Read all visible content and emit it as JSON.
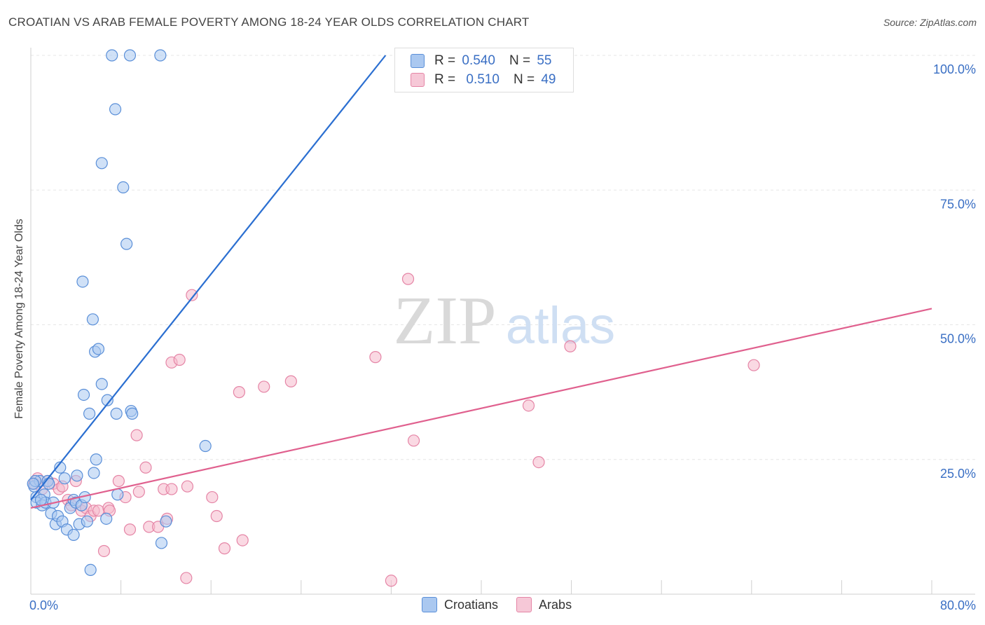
{
  "title": "CROATIAN VS ARAB FEMALE POVERTY AMONG 18-24 YEAR OLDS CORRELATION CHART",
  "source": "Source: ZipAtlas.com",
  "watermark": {
    "zip": "ZIP",
    "atlas": "atlas"
  },
  "colors": {
    "croatians_fill": "#aac8f0",
    "croatians_stroke": "#5a8fd8",
    "croatians_line": "#2b6fd1",
    "arabs_fill": "#f6b9cc",
    "arabs_stroke": "#e585a6",
    "arabs_line": "#e0608e",
    "axis_text": "#3a6fc4",
    "grid": "#e6e6e6"
  },
  "legend_top": {
    "rows": [
      {
        "r_label": "R =",
        "r_value": "0.540",
        "n_label": "N =",
        "n_value": "55"
      },
      {
        "r_label": "R =",
        "r_value": "0.510",
        "n_label": "N =",
        "n_value": "49"
      }
    ]
  },
  "legend_bottom": [
    "Croatians",
    "Arabs"
  ],
  "chart_data": {
    "type": "scatter",
    "title": "CROATIAN VS ARAB FEMALE POVERTY AMONG 18-24 YEAR OLDS CORRELATION CHART",
    "xlabel": "",
    "ylabel": "Female Poverty Among 18-24 Year Olds",
    "xlim": [
      0,
      80
    ],
    "ylim": [
      0,
      100
    ],
    "x_tick_labels": [
      "0.0%",
      "80.0%"
    ],
    "y_tick_labels": [
      "100.0%",
      "75.0%",
      "50.0%",
      "25.0%"
    ],
    "y_ticks": [
      100,
      75,
      50,
      25
    ],
    "grid": true,
    "legend_position": "top-center",
    "series": [
      {
        "name": "Croatians",
        "r": 0.54,
        "n": 55,
        "trend": {
          "x": [
            0,
            31.5
          ],
          "y": [
            17.5,
            100
          ]
        },
        "points": [
          [
            0.3,
            20
          ],
          [
            0.5,
            18
          ],
          [
            0.5,
            17
          ],
          [
            0.8,
            21
          ],
          [
            1.0,
            16.5
          ],
          [
            1.2,
            18.5
          ],
          [
            1.3,
            17
          ],
          [
            1.5,
            21
          ],
          [
            1.8,
            15
          ],
          [
            2.0,
            17
          ],
          [
            2.2,
            13
          ],
          [
            2.4,
            14.5
          ],
          [
            2.6,
            23.5
          ],
          [
            2.8,
            13.5
          ],
          [
            3.0,
            21.5
          ],
          [
            3.2,
            12
          ],
          [
            3.5,
            16
          ],
          [
            3.8,
            17.5
          ],
          [
            3.8,
            11
          ],
          [
            4.0,
            17
          ],
          [
            4.1,
            22
          ],
          [
            4.3,
            13
          ],
          [
            4.5,
            16.5
          ],
          [
            4.6,
            58
          ],
          [
            4.7,
            37
          ],
          [
            4.8,
            18
          ],
          [
            5.0,
            13.5
          ],
          [
            5.2,
            33.5
          ],
          [
            5.5,
            51
          ],
          [
            5.6,
            22.5
          ],
          [
            5.7,
            45
          ],
          [
            5.8,
            25
          ],
          [
            6.0,
            45.5
          ],
          [
            6.3,
            39
          ],
          [
            6.3,
            80
          ],
          [
            6.7,
            14
          ],
          [
            6.8,
            36
          ],
          [
            7.2,
            100
          ],
          [
            7.5,
            90
          ],
          [
            7.6,
            33.5
          ],
          [
            7.7,
            18.5
          ],
          [
            8.2,
            75.5
          ],
          [
            8.5,
            65
          ],
          [
            8.8,
            100
          ],
          [
            8.9,
            34
          ],
          [
            9.0,
            33.5
          ],
          [
            11.5,
            100
          ],
          [
            11.6,
            9.5
          ],
          [
            12.0,
            13.5
          ],
          [
            15.5,
            27.5
          ],
          [
            0.4,
            21
          ],
          [
            1.6,
            20.5
          ],
          [
            5.3,
            4.5
          ],
          [
            0.9,
            17.5
          ],
          [
            0.2,
            20.5
          ]
        ]
      },
      {
        "name": "Arabs",
        "r": 0.51,
        "n": 49,
        "trend": {
          "x": [
            0,
            80
          ],
          "y": [
            16,
            53
          ]
        },
        "points": [
          [
            0.3,
            20.5
          ],
          [
            0.6,
            21.5
          ],
          [
            1.0,
            19.5
          ],
          [
            1.5,
            21
          ],
          [
            2.0,
            20.5
          ],
          [
            2.5,
            19.5
          ],
          [
            2.8,
            20
          ],
          [
            3.3,
            17.5
          ],
          [
            3.6,
            16.5
          ],
          [
            4.0,
            21
          ],
          [
            4.5,
            15.5
          ],
          [
            4.9,
            16
          ],
          [
            5.3,
            14.5
          ],
          [
            5.6,
            15.5
          ],
          [
            6.0,
            15.5
          ],
          [
            6.5,
            8
          ],
          [
            6.9,
            16
          ],
          [
            7.0,
            15.5
          ],
          [
            7.8,
            21
          ],
          [
            8.4,
            18
          ],
          [
            8.8,
            12
          ],
          [
            9.4,
            29.5
          ],
          [
            9.6,
            19
          ],
          [
            10.2,
            23.5
          ],
          [
            10.5,
            12.5
          ],
          [
            11.3,
            12.5
          ],
          [
            11.8,
            19.5
          ],
          [
            12.1,
            14
          ],
          [
            12.5,
            19.5
          ],
          [
            12.5,
            43
          ],
          [
            13.2,
            43.5
          ],
          [
            13.8,
            3
          ],
          [
            13.9,
            20
          ],
          [
            14.3,
            55.5
          ],
          [
            16.1,
            18
          ],
          [
            16.5,
            14.5
          ],
          [
            17.2,
            8.5
          ],
          [
            18.5,
            37.5
          ],
          [
            18.8,
            10
          ],
          [
            20.7,
            38.5
          ],
          [
            23.1,
            39.5
          ],
          [
            30.6,
            44
          ],
          [
            32.0,
            2.5
          ],
          [
            33.5,
            58.5
          ],
          [
            34.0,
            28.5
          ],
          [
            44.2,
            35
          ],
          [
            45.1,
            24.5
          ],
          [
            47.9,
            46
          ],
          [
            64.2,
            42.5
          ]
        ]
      }
    ]
  }
}
